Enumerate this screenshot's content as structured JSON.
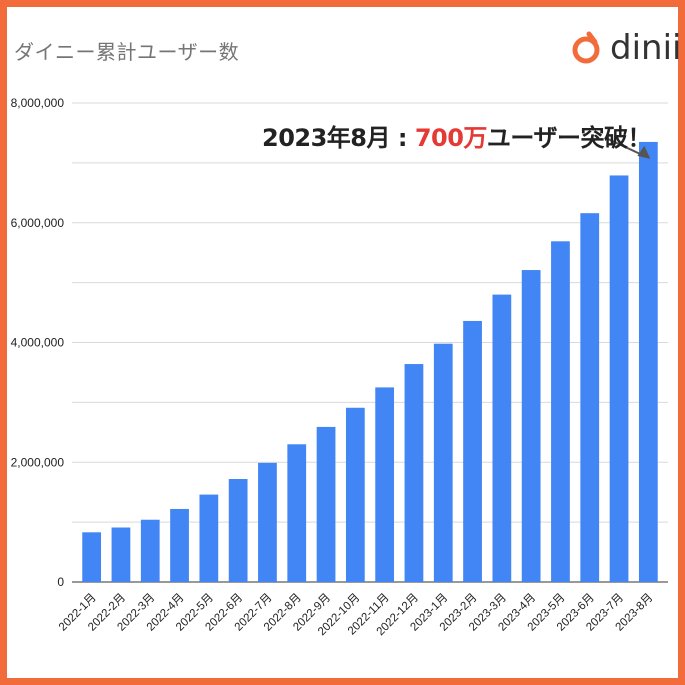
{
  "title": "ダイニー累計ユーザー数",
  "logo": {
    "text": "dinii",
    "icon": "dinii-logo-icon",
    "color": "#f26b3a"
  },
  "annotation": {
    "prefix": "2023年8月 : ",
    "highlight": "700万",
    "suffix": "ユーザー突破！"
  },
  "colors": {
    "bar": "#4285f4",
    "border": "#f26b3a",
    "grid": "#d9d9d9"
  },
  "chart_data": {
    "type": "bar",
    "title": "ダイニー累計ユーザー数",
    "xlabel": "",
    "ylabel": "",
    "ylim": [
      0,
      8000000
    ],
    "yticks": [
      0,
      2000000,
      4000000,
      6000000,
      8000000
    ],
    "ytick_labels": [
      "0",
      "2,000,000",
      "4,000,000",
      "6,000,000",
      "8,000,000"
    ],
    "grid": true,
    "categories": [
      "2022-1月",
      "2022-2月",
      "2022-3月",
      "2022-4月",
      "2022-5月",
      "2022-6月",
      "2022-7月",
      "2022-8月",
      "2022-9月",
      "2022-10月",
      "2022-11月",
      "2022-12月",
      "2023-1月",
      "2023-2月",
      "2023-3月",
      "2023-4月",
      "2023-5月",
      "2023-6月",
      "2023-7月",
      "2023-8月"
    ],
    "values": [
      830000,
      910000,
      1040000,
      1220000,
      1460000,
      1720000,
      1990000,
      2300000,
      2590000,
      2910000,
      3250000,
      3640000,
      3980000,
      4360000,
      4800000,
      5210000,
      5690000,
      6160000,
      6790000,
      7350000
    ]
  }
}
